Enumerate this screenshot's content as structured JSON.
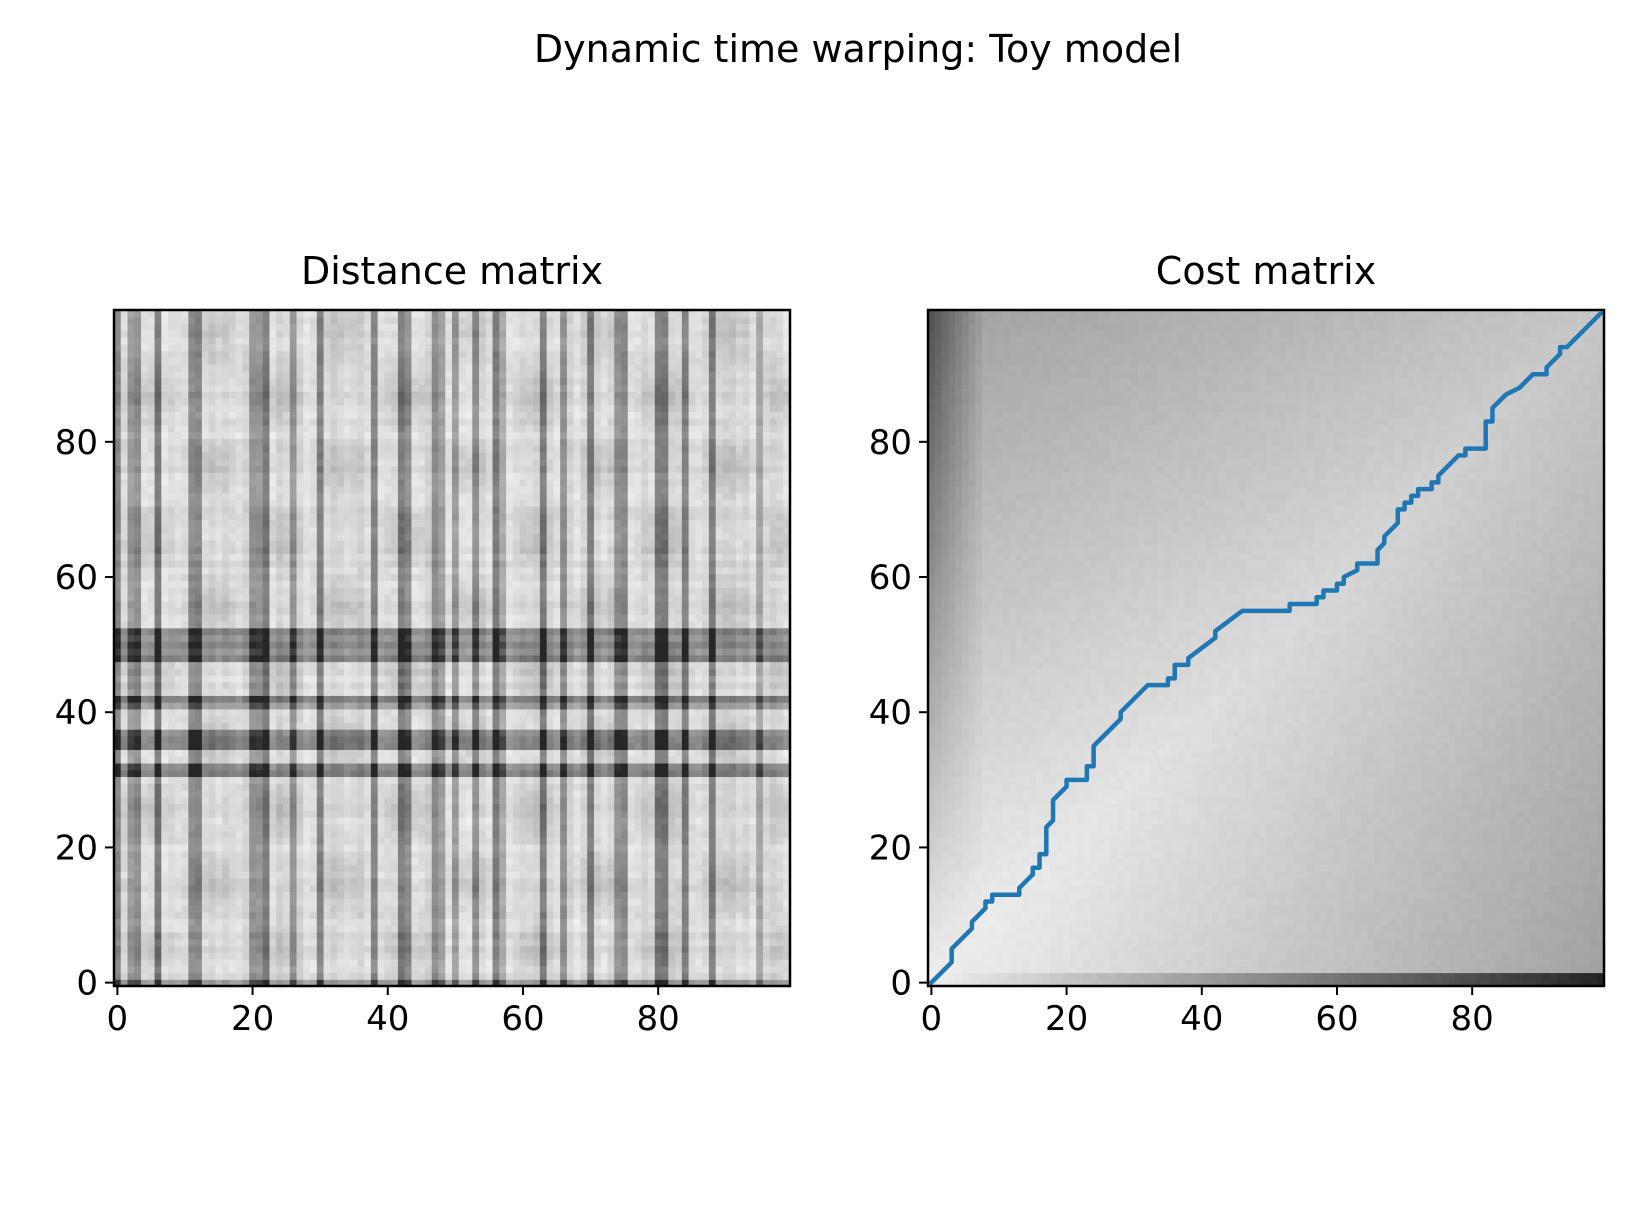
{
  "figure": {
    "suptitle": "Dynamic time warping: Toy model"
  },
  "colors": {
    "path": "#1f77b4",
    "frame": "#000000",
    "background": "#ffffff"
  },
  "chart_data": [
    {
      "type": "heatmap",
      "title": "Distance matrix",
      "xlabel": "",
      "ylabel": "",
      "colormap": "gray_r",
      "origin": "lower",
      "grid": false,
      "xlim": [
        -0.5,
        99.5
      ],
      "ylim": [
        -0.5,
        99.5
      ],
      "size": [
        100,
        100
      ],
      "xticks": [
        0,
        20,
        40,
        60,
        80
      ],
      "yticks": [
        0,
        20,
        40,
        60,
        80
      ],
      "xticklabels": [
        "0",
        "20",
        "40",
        "60",
        "80"
      ],
      "yticklabels": [
        "0",
        "20",
        "40",
        "60",
        "80"
      ],
      "dark_rows": [
        0,
        31,
        32,
        35,
        36,
        37,
        41,
        42,
        48,
        49,
        50,
        51,
        52
      ],
      "dark_columns": [
        0,
        2,
        3,
        6,
        11,
        12,
        20,
        21,
        22,
        26,
        30,
        38,
        42,
        43,
        47,
        48,
        50,
        53,
        56,
        57,
        63,
        66,
        70,
        74,
        75,
        80,
        81,
        84,
        88,
        95
      ]
    },
    {
      "type": "heatmap",
      "title": "Cost matrix",
      "xlabel": "",
      "ylabel": "",
      "colormap": "gray_r",
      "origin": "lower",
      "grid": false,
      "xlim": [
        -0.5,
        99.5
      ],
      "ylim": [
        -0.5,
        99.5
      ],
      "size": [
        100,
        100
      ],
      "xticks": [
        0,
        20,
        40,
        60,
        80
      ],
      "yticks": [
        0,
        20,
        40,
        60,
        80
      ],
      "xticklabels": [
        "0",
        "20",
        "40",
        "60",
        "80"
      ],
      "yticklabels": [
        "0",
        "20",
        "40",
        "60",
        "80"
      ],
      "series": [
        {
          "type": "line",
          "x": [
            0,
            3,
            3,
            6,
            6,
            8,
            8,
            9,
            9,
            13,
            13,
            15,
            15,
            16,
            16,
            17,
            17,
            18,
            18,
            20,
            20,
            23,
            23,
            24,
            24,
            28,
            28,
            32,
            32,
            35,
            35,
            36,
            36,
            38,
            38,
            42,
            42,
            46,
            46,
            53,
            53,
            57,
            57,
            58,
            58,
            60,
            60,
            61,
            61,
            63,
            63,
            66,
            66,
            67,
            67,
            69,
            69,
            70,
            70,
            71,
            71,
            72,
            72,
            74,
            74,
            75,
            75,
            78,
            78,
            79,
            79,
            82,
            82,
            83,
            83,
            85,
            85,
            87,
            87,
            88,
            88,
            89,
            89,
            91,
            91,
            93,
            93,
            94,
            94,
            99
          ],
          "y": [
            0,
            3,
            5,
            8,
            9,
            11,
            12,
            12,
            13,
            13,
            14,
            16,
            17,
            17,
            19,
            19,
            23,
            24,
            27,
            29,
            30,
            30,
            32,
            32,
            35,
            39,
            40,
            44,
            44,
            44,
            45,
            45,
            47,
            47,
            48,
            51,
            52,
            55,
            55,
            55,
            56,
            56,
            57,
            57,
            58,
            58,
            59,
            59,
            60,
            61,
            62,
            62,
            64,
            65,
            66,
            68,
            70,
            70,
            71,
            71,
            72,
            72,
            73,
            73,
            74,
            74,
            75,
            78,
            78,
            78,
            79,
            79,
            83,
            83,
            85,
            87,
            87,
            88,
            88,
            89,
            89,
            90,
            90,
            90,
            91,
            93,
            94,
            94,
            94,
            99
          ]
        }
      ]
    }
  ]
}
